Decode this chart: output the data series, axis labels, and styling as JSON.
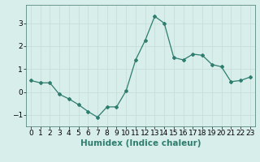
{
  "x": [
    0,
    1,
    2,
    3,
    4,
    5,
    6,
    7,
    8,
    9,
    10,
    11,
    12,
    13,
    14,
    15,
    16,
    17,
    18,
    19,
    20,
    21,
    22,
    23
  ],
  "y": [
    0.5,
    0.4,
    0.4,
    -0.1,
    -0.3,
    -0.55,
    -0.85,
    -1.1,
    -0.65,
    -0.65,
    0.05,
    1.4,
    2.25,
    3.3,
    3.0,
    1.5,
    1.4,
    1.65,
    1.6,
    1.2,
    1.1,
    0.45,
    0.5,
    0.65
  ],
  "line_color": "#2e7d6e",
  "marker": "D",
  "marker_size": 2,
  "bg_color": "#d8eeeb",
  "grid_color": "#c8deda",
  "xlabel": "Humidex (Indice chaleur)",
  "ylim": [
    -1.5,
    3.8
  ],
  "xlim": [
    -0.5,
    23.5
  ],
  "yticks": [
    -1,
    0,
    1,
    2,
    3
  ],
  "xticks": [
    0,
    1,
    2,
    3,
    4,
    5,
    6,
    7,
    8,
    9,
    10,
    11,
    12,
    13,
    14,
    15,
    16,
    17,
    18,
    19,
    20,
    21,
    22,
    23
  ],
  "tick_fontsize": 6.5,
  "label_fontsize": 7.5,
  "spine_color": "#5a8a82"
}
